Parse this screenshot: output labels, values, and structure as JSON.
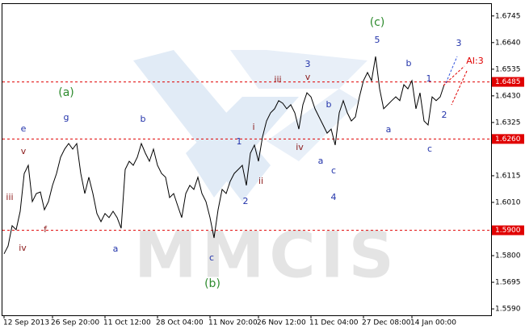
{
  "chart_data": {
    "type": "line",
    "watermark": "MMCIS",
    "categories": [
      "12 Sep 2013",
      null,
      null,
      null,
      null,
      null,
      null,
      null,
      null,
      null,
      null,
      null,
      "26 Sep 20:00",
      null,
      null,
      null,
      null,
      null,
      null,
      null,
      null,
      null,
      null,
      null,
      null,
      "11 Oct 12:00",
      null,
      null,
      null,
      null,
      null,
      null,
      null,
      null,
      null,
      null,
      null,
      null,
      "28 Oct 04:00",
      null,
      null,
      null,
      null,
      null,
      null,
      null,
      null,
      null,
      null,
      null,
      null,
      "11 Nov 20:00",
      null,
      null,
      null,
      null,
      null,
      null,
      null,
      null,
      null,
      null,
      null,
      "26 Nov 12:00",
      null,
      null,
      null,
      null,
      null,
      null,
      null,
      null,
      null,
      null,
      null,
      null,
      "11 Dec 04:00",
      null,
      null,
      null,
      null,
      null,
      null,
      null,
      null,
      null,
      null,
      null,
      null,
      "27 Dec 08:00",
      null,
      null,
      null,
      null,
      null,
      null,
      null,
      null,
      null,
      null,
      null,
      "14 Jan 00:00",
      null,
      null,
      null,
      null,
      null,
      null,
      null,
      null
    ],
    "series": [
      {
        "color": "#000000",
        "values": [
          1.5807,
          1.5838,
          1.5918,
          1.5902,
          1.5975,
          1.6124,
          1.6156,
          1.6013,
          1.6045,
          1.6051,
          1.5981,
          1.6013,
          1.6077,
          1.6124,
          1.6188,
          1.622,
          1.6242,
          1.622,
          1.6242,
          1.6124,
          1.6045,
          1.6109,
          1.6045,
          1.5966,
          1.5934,
          1.5966,
          1.595,
          1.5975,
          1.595,
          1.5908,
          1.614,
          1.6172,
          1.6156,
          1.6188,
          1.6242,
          1.6204,
          1.6172,
          1.622,
          1.6156,
          1.6124,
          1.6109,
          1.6029,
          1.6045,
          1.5997,
          1.595,
          1.6045,
          1.6077,
          1.6061,
          1.6109,
          1.6045,
          1.6013,
          1.595,
          1.587,
          1.5981,
          1.6061,
          1.6045,
          1.6093,
          1.6124,
          1.614,
          1.6156,
          1.6077,
          1.6204,
          1.6236,
          1.6172,
          1.6268,
          1.6331,
          1.6363,
          1.6379,
          1.6411,
          1.6401,
          1.6379,
          1.6395,
          1.6363,
          1.6299,
          1.6395,
          1.6442,
          1.6426,
          1.6379,
          1.6347,
          1.6315,
          1.6283,
          1.6299,
          1.6236,
          1.6363,
          1.6411,
          1.6363,
          1.6331,
          1.6347,
          1.6426,
          1.649,
          1.6522,
          1.649,
          1.6585,
          1.6458,
          1.6379,
          1.6395,
          1.6411,
          1.6426,
          1.6411,
          1.6474,
          1.6458,
          1.649,
          1.6379,
          1.6442,
          1.6331,
          1.6315,
          1.6426,
          1.6411,
          1.6426,
          1.6474
        ]
      }
    ],
    "ylim": [
      1.5568,
      1.6792
    ],
    "yticks": [
      1.6745,
      {
        "value": 1.664,
        "label": "1.6640"
      },
      1.6535,
      {
        "value": 1.643,
        "label": "1.6430"
      },
      1.6325,
      1.6115,
      {
        "value": 1.601,
        "label": "1.6010"
      },
      {
        "value": 1.58,
        "label": "1.5800"
      },
      1.5695,
      {
        "value": 1.559,
        "label": "1.5590"
      }
    ],
    "levels": [
      {
        "value": 1.6485,
        "label": "1.6485"
      },
      {
        "value": 1.626,
        "label": "1.6260"
      },
      {
        "value": 1.59,
        "label": "1.5900"
      }
    ],
    "level_color": "#e00000",
    "annotations": [
      "(a)",
      "(b)",
      "(c)",
      "e",
      "v",
      "iii",
      "iv",
      "f",
      "g",
      "a",
      "b",
      "c",
      "1",
      "2",
      "i",
      "ii",
      "3",
      "v",
      "iii",
      "b",
      "iv",
      "a",
      "c",
      "4",
      "5",
      "b",
      "a",
      "1",
      "2",
      "c",
      "3",
      "AI:3"
    ]
  }
}
